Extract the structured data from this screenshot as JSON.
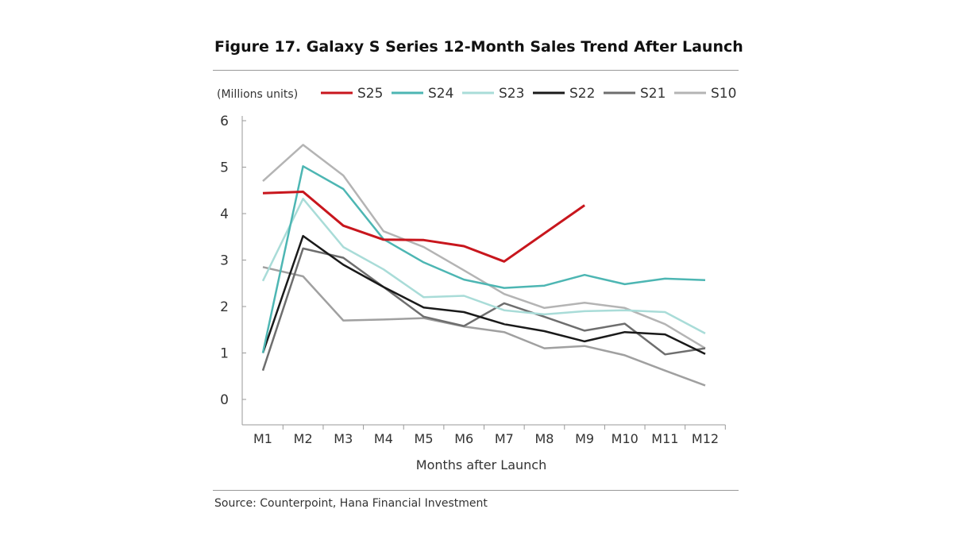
{
  "chart_data": {
    "type": "line",
    "title": "Figure 17. Galaxy S Series 12-Month Sales Trend After Launch",
    "ylabel": "(Millions units)",
    "xlabel": "Months after Launch",
    "categories": [
      "M1",
      "M2",
      "M3",
      "M4",
      "M5",
      "M6",
      "M7",
      "M8",
      "M9",
      "M10",
      "M11",
      "M12"
    ],
    "ylim": [
      0,
      6
    ],
    "yticks": [
      0,
      1,
      2,
      3,
      4,
      5,
      6
    ],
    "grid": false,
    "legend": "top",
    "series": [
      {
        "name": "S25",
        "color": "#c8161d",
        "values": [
          4.44,
          4.47,
          3.74,
          3.44,
          3.43,
          3.3,
          2.97,
          null,
          4.18,
          null,
          null,
          null
        ]
      },
      {
        "name": "S24",
        "color": "#4db6b3",
        "values": [
          1.0,
          5.02,
          4.53,
          3.45,
          2.95,
          2.58,
          2.4,
          2.45,
          2.68,
          2.48,
          2.6,
          2.57
        ]
      },
      {
        "name": "S23",
        "color": "#a9dcd8",
        "values": [
          2.55,
          4.32,
          3.28,
          2.8,
          2.2,
          2.23,
          1.92,
          1.83,
          1.9,
          1.92,
          1.88,
          1.42
        ]
      },
      {
        "name": "S22",
        "color": "#1a1a1a",
        "values": [
          1.0,
          3.52,
          2.9,
          2.42,
          1.98,
          1.88,
          1.62,
          1.47,
          1.25,
          1.45,
          1.4,
          0.98
        ]
      },
      {
        "name": "S21",
        "color": "#6e6e6e",
        "values": [
          0.62,
          3.25,
          3.05,
          2.42,
          1.78,
          1.58,
          2.07,
          1.78,
          1.48,
          1.63,
          0.97,
          1.1
        ]
      },
      {
        "name": "S10",
        "color": "#b4b4b4",
        "values": [
          4.7,
          5.48,
          4.82,
          3.62,
          3.28,
          2.78,
          2.27,
          1.97,
          2.08,
          1.97,
          1.62,
          1.1
        ]
      },
      {
        "color": "#a0a0a0",
        "values": [
          2.85,
          2.65,
          1.7,
          1.72,
          1.75,
          1.57,
          1.45,
          1.1,
          1.15,
          0.95,
          0.62,
          0.3
        ]
      }
    ]
  },
  "source": "Source: Counterpoint, Hana Financial Investment"
}
